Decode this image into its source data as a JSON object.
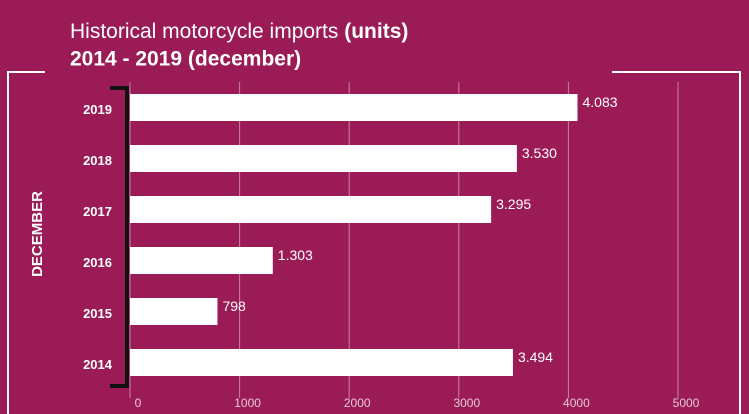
{
  "chart_data": {
    "type": "hbar",
    "title": "Historical motorcycle imports",
    "title_bold": "(units)",
    "subtitle": "2014 - 2019 (december)",
    "y_label": "DECEMBER",
    "categories": [
      "2019",
      "2018",
      "2017",
      "2016",
      "2015",
      "2014"
    ],
    "values": [
      4083,
      3530,
      3295,
      1303,
      798,
      3494
    ],
    "value_labels": [
      "4.083",
      "3.530",
      "3.295",
      "1.303",
      "798",
      "3.494"
    ],
    "color": "#ffffff",
    "xlim": [
      0,
      5000
    ],
    "xticks": [
      0,
      1000,
      2000,
      3000,
      4000,
      5000
    ],
    "grid": true
  }
}
